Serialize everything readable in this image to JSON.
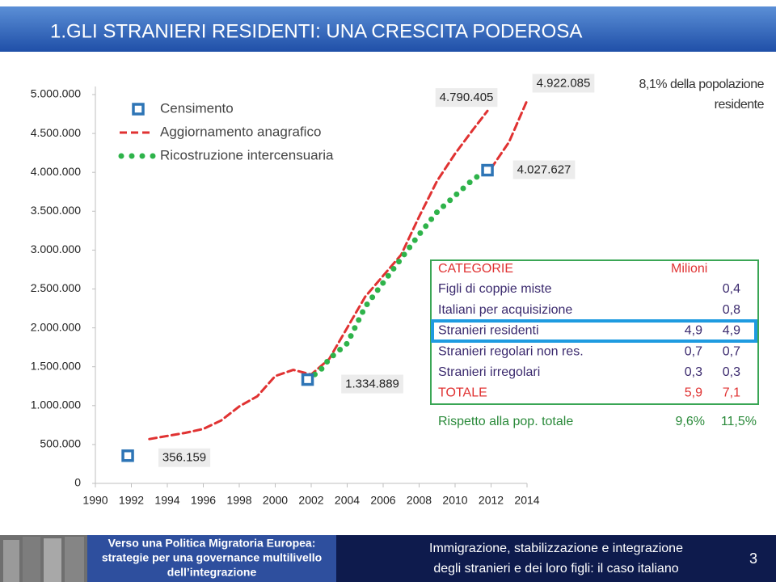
{
  "header": {
    "title": "1.GLI STRANIERI RESIDENTI: UNA CRESCITA PODEROSA"
  },
  "chart_data": {
    "type": "line",
    "annotation": [
      "8,1% della popolazione",
      "residente"
    ],
    "xlim": [
      1990,
      2014
    ],
    "xticks": [
      1990,
      1992,
      1994,
      1996,
      1998,
      2000,
      2002,
      2004,
      2006,
      2008,
      2010,
      2012,
      2014
    ],
    "ylim": [
      0,
      5000000
    ],
    "yticks": [
      0,
      {
        "value": 500000,
        "label": "500.000"
      },
      {
        "value": 1000000,
        "label": "1.000.000"
      },
      {
        "value": 1500000,
        "label": "1.500.000"
      },
      {
        "value": 2000000,
        "label": "2.000.000"
      },
      {
        "value": 2500000,
        "label": "2.500.000"
      },
      {
        "value": 3000000,
        "label": "3.000.000"
      },
      {
        "value": 3500000,
        "label": "3.500.000"
      },
      {
        "value": 4000000,
        "label": "4.000.000"
      },
      {
        "value": 4500000,
        "label": "4.500.000"
      },
      {
        "value": 5000000,
        "label": "5.000.000"
      }
    ],
    "series": [
      {
        "name": "Censimento",
        "style": "markers",
        "color": "#2e75b6",
        "x": [
          1991.8,
          2001.8,
          2011.8
        ],
        "values": [
          356159,
          1334889,
          4027627
        ],
        "value_labels": [
          "356.159",
          "1.334.889",
          "4.027.627"
        ]
      },
      {
        "name": "Aggiornamento anagrafico",
        "style": "dashed",
        "color": "#e03232",
        "x": [
          1993,
          1994,
          1995,
          1996,
          1997,
          1998,
          1999,
          2000,
          2001,
          2002,
          2003,
          2004,
          2005,
          2006,
          2007,
          2008,
          2009,
          2010,
          2011,
          2011.8,
          null,
          2012,
          2013,
          2014
        ],
        "values": [
          570000,
          610000,
          650000,
          700000,
          810000,
          990000,
          1120000,
          1380000,
          1460000,
          1400000,
          1600000,
          2000000,
          2400000,
          2670000,
          2940000,
          3430000,
          3890000,
          4240000,
          4550000,
          4790405,
          null,
          4050000,
          4390000,
          4922085
        ],
        "value_labels": [
          null,
          null,
          null,
          null,
          null,
          null,
          null,
          null,
          null,
          null,
          null,
          null,
          null,
          null,
          null,
          null,
          null,
          null,
          null,
          "4.790.405",
          null,
          null,
          null,
          "4.922.085"
        ]
      },
      {
        "name": "Ricostruzione intercensuaria",
        "style": "dotted",
        "color": "#2eb34a",
        "x": [
          2001.8,
          2002.5,
          2003,
          2004,
          2005,
          2006,
          2007,
          2008,
          2009,
          2010,
          2011,
          2011.8
        ],
        "values": [
          1334889,
          1450000,
          1600000,
          1800000,
          2270000,
          2580000,
          2890000,
          3200000,
          3490000,
          3700000,
          3910000,
          4027627
        ]
      }
    ]
  },
  "table": {
    "header": [
      "CATEGORIE",
      "Milioni"
    ],
    "rows": [
      [
        "Figli di coppie miste",
        null,
        "0,4"
      ],
      [
        "Italiani per acquisizione",
        null,
        "0,8"
      ],
      [
        "Stranieri residenti",
        "4,9",
        "4,9"
      ],
      [
        "Stranieri regolari non res.",
        "0,7",
        "0,7"
      ],
      [
        "Stranieri irregolari",
        "0,3",
        "0,3"
      ],
      [
        "TOTALE",
        "5,9",
        "7,1"
      ]
    ],
    "ratio_row": [
      "Rispetto alla pop. totale",
      "9,6%",
      "11,5%"
    ]
  },
  "footer": {
    "banner": [
      "Verso una Politica Migratoria Europea:",
      "strategie per una governance multilivello",
      "dell’integrazione"
    ],
    "subtitle": [
      "Immigrazione, stabilizzazione e integrazione",
      "degli stranieri e dei loro figli: il caso italiano"
    ],
    "page": 3
  }
}
